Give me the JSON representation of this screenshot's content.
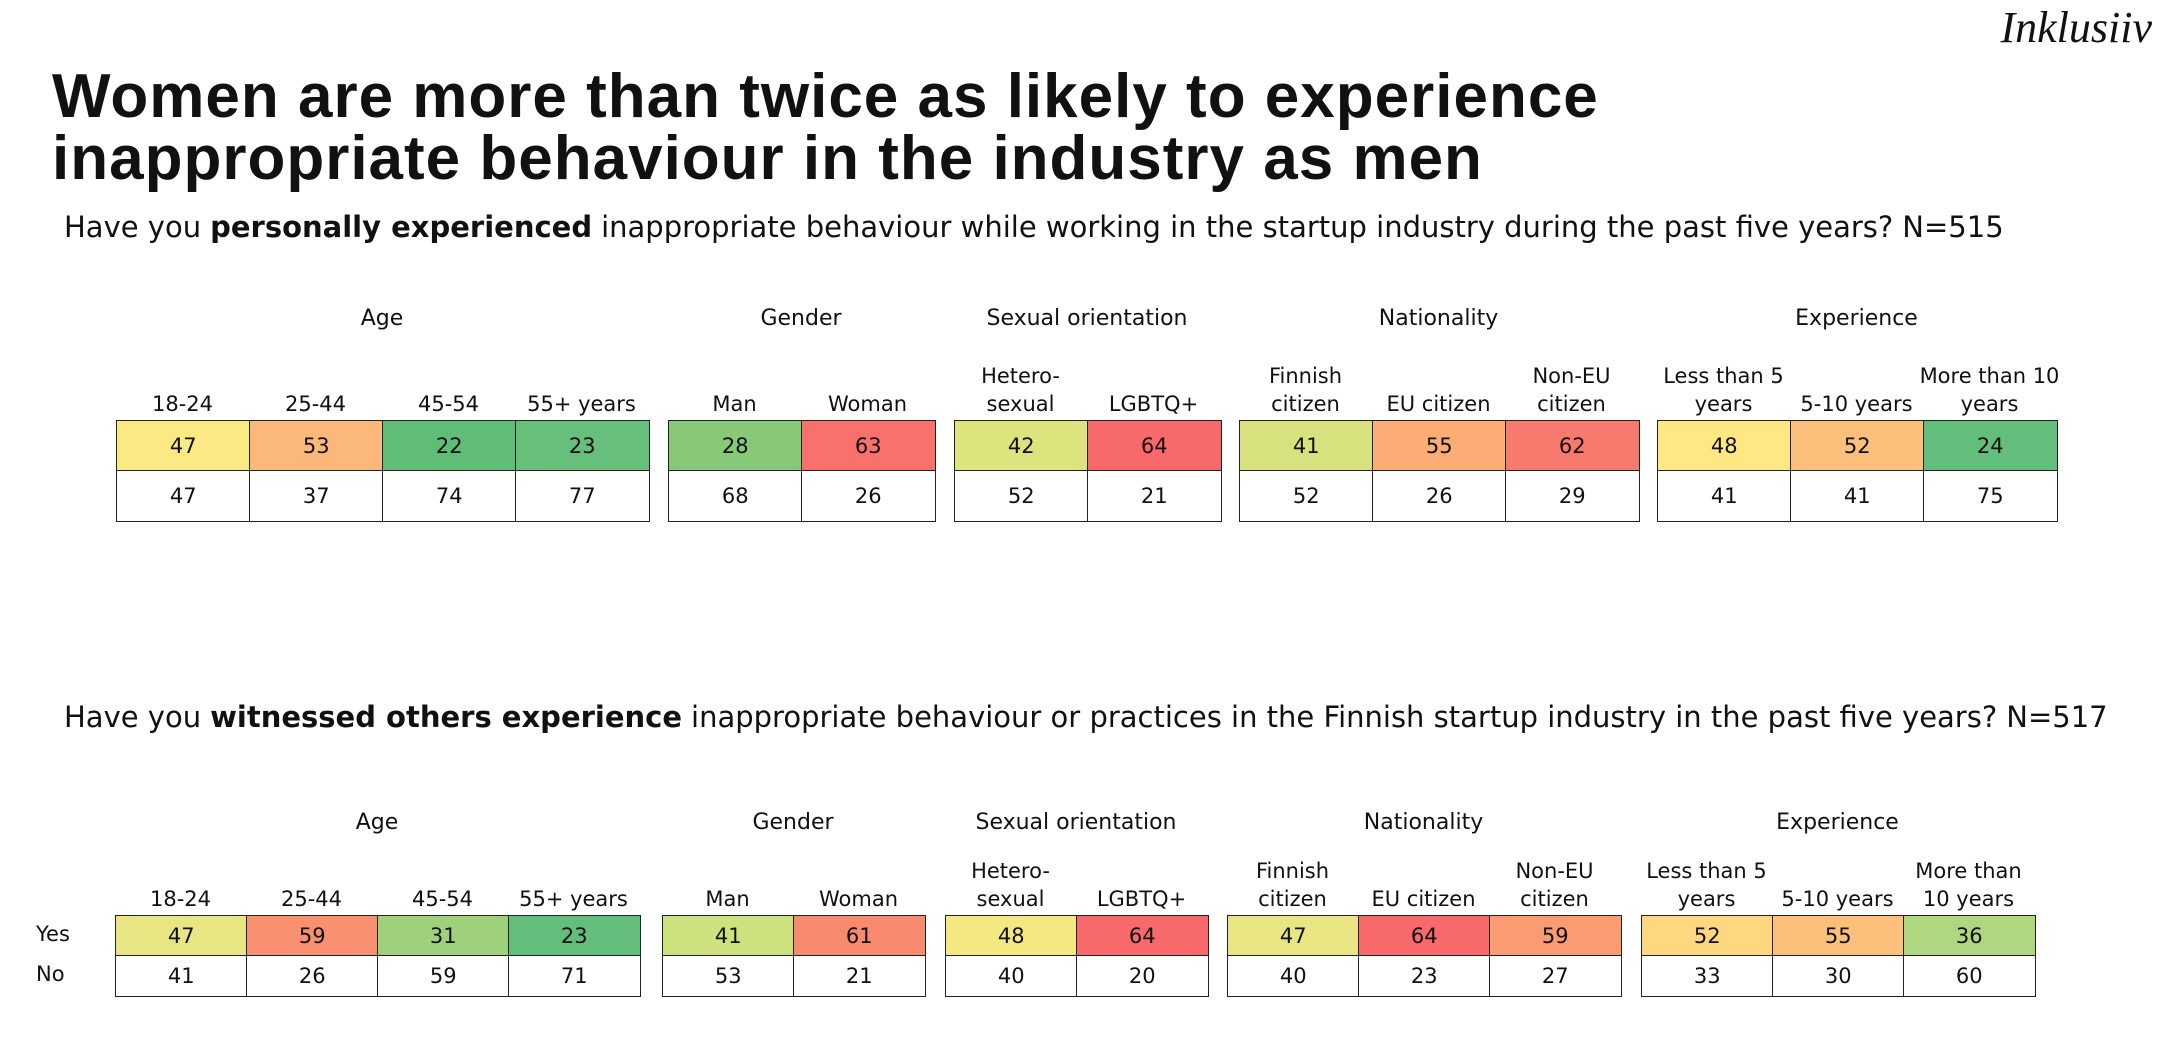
{
  "brand": "Inklusiiv",
  "title": "Women are more than twice as likely to experience inappropriate behaviour in the industry as men",
  "sections": [
    {
      "question": {
        "before": "Have you",
        "emphasis": "personally experienced",
        "after": "inappropriate behaviour while working in the startup industry during the past five years?",
        "sample": "N=515"
      },
      "groups": [
        {
          "label": "Age",
          "columns": [
            "18-24",
            "25-44",
            "45-54",
            "55+ years"
          ],
          "yes": [
            47,
            53,
            22,
            23
          ],
          "no": [
            47,
            37,
            74,
            77
          ],
          "colors": [
            "#fbe983",
            "#fcb87a",
            "#5fbd77",
            "#66c07b"
          ]
        },
        {
          "label": "Gender",
          "columns": [
            "Man",
            "Woman"
          ],
          "yes": [
            28,
            63
          ],
          "no": [
            68,
            26
          ],
          "colors": [
            "#87c978",
            "#f8716c"
          ]
        },
        {
          "label": "Sexual orientation",
          "columns": [
            "Hetero-sexual",
            "LGBTQ+"
          ],
          "yes": [
            42,
            64
          ],
          "no": [
            52,
            21
          ],
          "colors": [
            "#dde47e",
            "#f8696b"
          ]
        },
        {
          "label": "Nationality",
          "columns": [
            "Finnish citizen",
            "EU citizen",
            "Non-EU citizen"
          ],
          "yes": [
            41,
            55,
            62
          ],
          "no": [
            52,
            26,
            29
          ],
          "colors": [
            "#d7e27e",
            "#fcad76",
            "#f8796e"
          ]
        },
        {
          "label": "Experience",
          "columns": [
            "Less than 5 years",
            "5-10 years",
            "More than 10 years"
          ],
          "yes": [
            48,
            52,
            24
          ],
          "no": [
            41,
            41,
            75
          ],
          "colors": [
            "#fee883",
            "#fdc07c",
            "#63be7b"
          ]
        }
      ]
    },
    {
      "question": {
        "before": "Have you",
        "emphasis": "witnessed others experience",
        "after": "inappropriate behaviour or practices in the Finnish startup industry in the past five years?",
        "sample": "N=517"
      },
      "row_labels": [
        "Yes",
        "No"
      ],
      "groups": [
        {
          "label": "Age",
          "columns": [
            "18-24",
            "25-44",
            "45-54",
            "55+ years"
          ],
          "yes": [
            47,
            59,
            31,
            23
          ],
          "no": [
            41,
            26,
            59,
            71
          ],
          "colors": [
            "#e8e683",
            "#f9906f",
            "#9fd17c",
            "#63be7b"
          ]
        },
        {
          "label": "Gender",
          "columns": [
            "Man",
            "Woman"
          ],
          "yes": [
            41,
            61
          ],
          "no": [
            53,
            21
          ],
          "colors": [
            "#cde17f",
            "#f88a6f"
          ]
        },
        {
          "label": "Sexual orientation",
          "columns": [
            "Hetero-sexual",
            "LGBTQ+"
          ],
          "yes": [
            48,
            64
          ],
          "no": [
            40,
            20
          ],
          "colors": [
            "#f4e882",
            "#f8696b"
          ]
        },
        {
          "label": "Nationality",
          "columns": [
            "Finnish citizen",
            "EU citizen",
            "Non-EU citizen"
          ],
          "yes": [
            47,
            64,
            59
          ],
          "no": [
            40,
            23,
            27
          ],
          "colors": [
            "#e9e582",
            "#f8696b",
            "#fa9b72"
          ]
        },
        {
          "label": "Experience",
          "columns": [
            "Less than 5 years",
            "5-10 years",
            "More than 10 years"
          ],
          "yes": [
            52,
            55,
            36
          ],
          "no": [
            33,
            30,
            60
          ],
          "colors": [
            "#fed880",
            "#fdc07c",
            "#b0d67f"
          ]
        }
      ]
    }
  ]
}
